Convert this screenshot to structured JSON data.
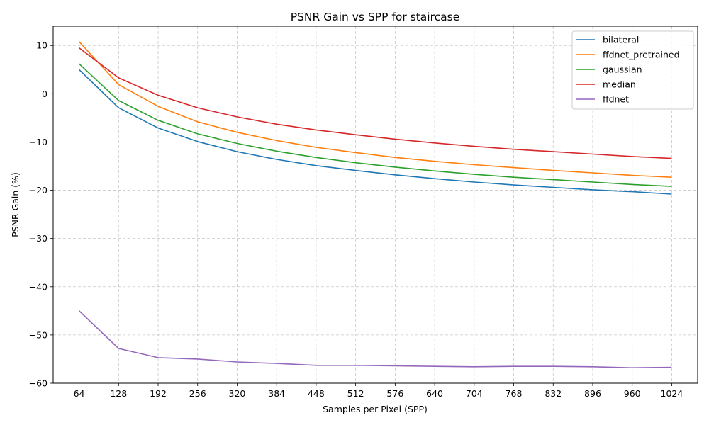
{
  "chart_data": {
    "type": "line",
    "title": "PSNR Gain vs SPP for staircase",
    "xlabel": "Samples per Pixel (SPP)",
    "ylabel": "PSNR Gain (%)",
    "x": [
      64,
      128,
      192,
      256,
      320,
      384,
      448,
      512,
      576,
      640,
      704,
      768,
      832,
      896,
      960,
      1024
    ],
    "xlim": [
      22,
      1066
    ],
    "ylim": [
      -60,
      14
    ],
    "yticks": [
      10,
      0,
      -10,
      -20,
      -30,
      -40,
      -50,
      -60
    ],
    "ytick_labels": [
      "10",
      "0",
      "−10",
      "−20",
      "−30",
      "−40",
      "−50",
      "−60"
    ],
    "grid": true,
    "legend_position": "top-right",
    "series": [
      {
        "name": "bilateral",
        "color": "#1f77b4",
        "values": [
          5.0,
          -2.9,
          -7.1,
          -9.9,
          -12.0,
          -13.6,
          -14.9,
          -15.9,
          -16.8,
          -17.6,
          -18.3,
          -18.9,
          -19.4,
          -19.9,
          -20.3,
          -20.8
        ]
      },
      {
        "name": "ffdnet_pretrained",
        "color": "#ff7f0e",
        "values": [
          10.8,
          1.9,
          -2.6,
          -5.8,
          -8.0,
          -9.7,
          -11.1,
          -12.2,
          -13.2,
          -14.0,
          -14.7,
          -15.3,
          -15.9,
          -16.4,
          -16.9,
          -17.3
        ]
      },
      {
        "name": "gaussian",
        "color": "#2ca02c",
        "values": [
          6.2,
          -1.4,
          -5.5,
          -8.3,
          -10.3,
          -11.9,
          -13.2,
          -14.3,
          -15.2,
          -16.0,
          -16.7,
          -17.3,
          -17.8,
          -18.3,
          -18.8,
          -19.2
        ]
      },
      {
        "name": "median",
        "color": "#d62728",
        "values": [
          9.5,
          3.3,
          -0.3,
          -2.9,
          -4.8,
          -6.3,
          -7.5,
          -8.5,
          -9.4,
          -10.2,
          -10.9,
          -11.5,
          -12.0,
          -12.5,
          -13.0,
          -13.4
        ]
      },
      {
        "name": "ffdnet",
        "color": "#9467bd",
        "values": [
          -45.0,
          -52.8,
          -54.7,
          -55.0,
          -55.6,
          -55.9,
          -56.3,
          -56.3,
          -56.4,
          -56.5,
          -56.6,
          -56.5,
          -56.5,
          -56.6,
          -56.8,
          -56.7
        ]
      }
    ]
  }
}
